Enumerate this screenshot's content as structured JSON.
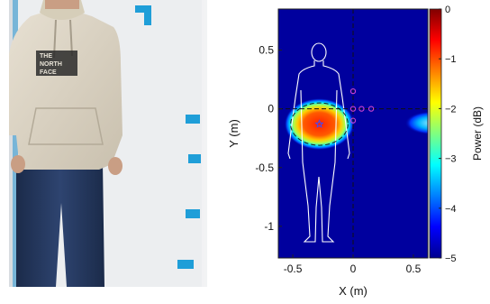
{
  "photo": {
    "logo_line1": "THE",
    "logo_line2": "NORTH",
    "logo_line3": "FACE"
  },
  "chart_data": {
    "type": "heatmap",
    "xlabel": "X (m)",
    "ylabel": "Y (m)",
    "xlim": [
      -0.62,
      0.62
    ],
    "ylim": [
      -1.27,
      0.85
    ],
    "x_ticks": [
      -0.5,
      0,
      0.5
    ],
    "x_tick_labels": [
      "-0.5",
      "0",
      "0.5"
    ],
    "y_ticks": [
      0.5,
      0,
      -0.5,
      -1
    ],
    "y_tick_labels": [
      "0.5",
      "0",
      "-0.5",
      "-1"
    ],
    "colorbar": {
      "label": "Power (dB)",
      "min": -5,
      "max": 0,
      "ticks": [
        0,
        -1,
        -2,
        -3,
        -4,
        -5
      ],
      "tick_labels": [
        "0",
        "−1",
        "−2",
        "−3",
        "−4",
        "−5"
      ],
      "colormap": "jet"
    },
    "hotspots": [
      {
        "x": -0.28,
        "y": -0.13,
        "rx": 0.29,
        "ry": 0.22,
        "peak_db": 0
      },
      {
        "x": 0.65,
        "y": -0.12,
        "rx": 0.22,
        "ry": 0.1,
        "peak_db": -3
      }
    ],
    "peak_marker": {
      "x": -0.28,
      "y": -0.13,
      "symbol": "star",
      "color": "#3b4dff"
    },
    "antenna_markers": [
      {
        "x": 0.0,
        "y": 0.15,
        "color": "#cc44cc"
      },
      {
        "x": 0.0,
        "y": 0.0,
        "color": "#cc44cc"
      },
      {
        "x": 0.07,
        "y": 0.0,
        "color": "#cc44cc"
      },
      {
        "x": 0.15,
        "y": 0.0,
        "color": "#cc44cc"
      },
      {
        "x": 0.0,
        "y": -0.1,
        "color": "#cc44cc"
      }
    ],
    "reference_lines": {
      "x": 0,
      "y": 0,
      "style": "dashed"
    },
    "background_color": "#00009e",
    "grid": false
  }
}
